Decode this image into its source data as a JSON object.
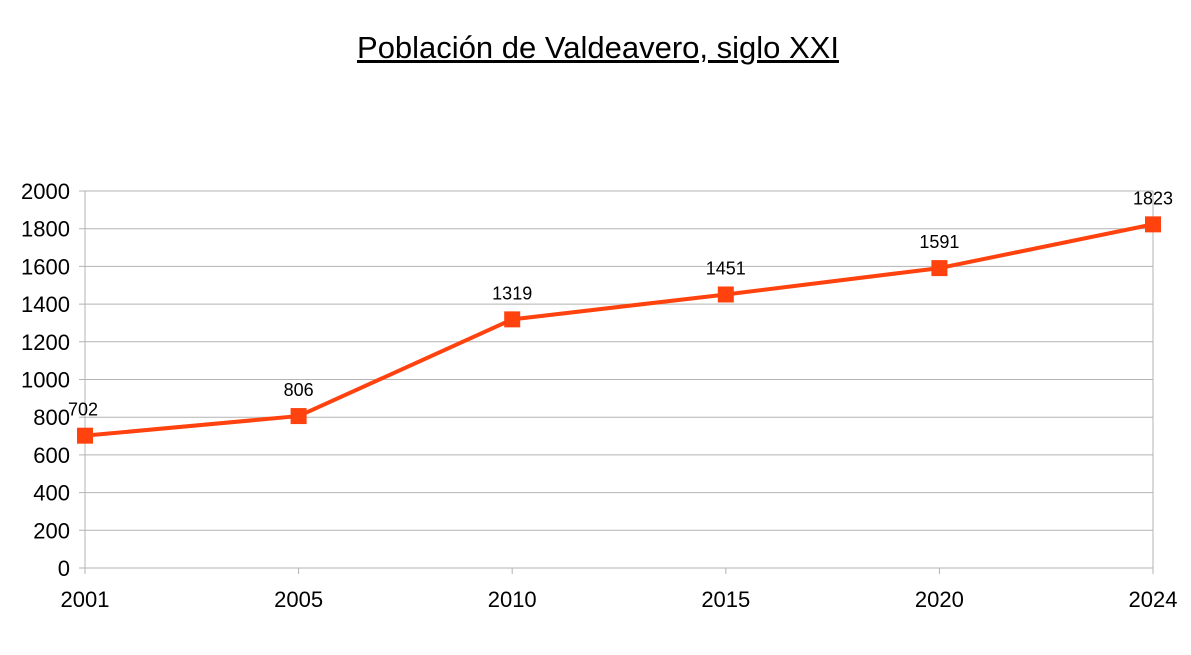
{
  "chart_data": {
    "type": "line",
    "title": "Población de Valdeavero, siglo XXI",
    "xlabel": "",
    "ylabel": "",
    "categories": [
      "2001",
      "2005",
      "2010",
      "2015",
      "2020",
      "2024"
    ],
    "series": [
      {
        "name": "Población",
        "values": [
          702,
          806,
          1319,
          1451,
          1591,
          1823
        ],
        "color": "#ff420e"
      }
    ],
    "ylim": [
      0,
      2000
    ],
    "yticks": [
      0,
      200,
      400,
      600,
      800,
      1000,
      1200,
      1400,
      1600,
      1800,
      2000
    ],
    "grid": true,
    "legend": "none",
    "data_labels": true
  }
}
